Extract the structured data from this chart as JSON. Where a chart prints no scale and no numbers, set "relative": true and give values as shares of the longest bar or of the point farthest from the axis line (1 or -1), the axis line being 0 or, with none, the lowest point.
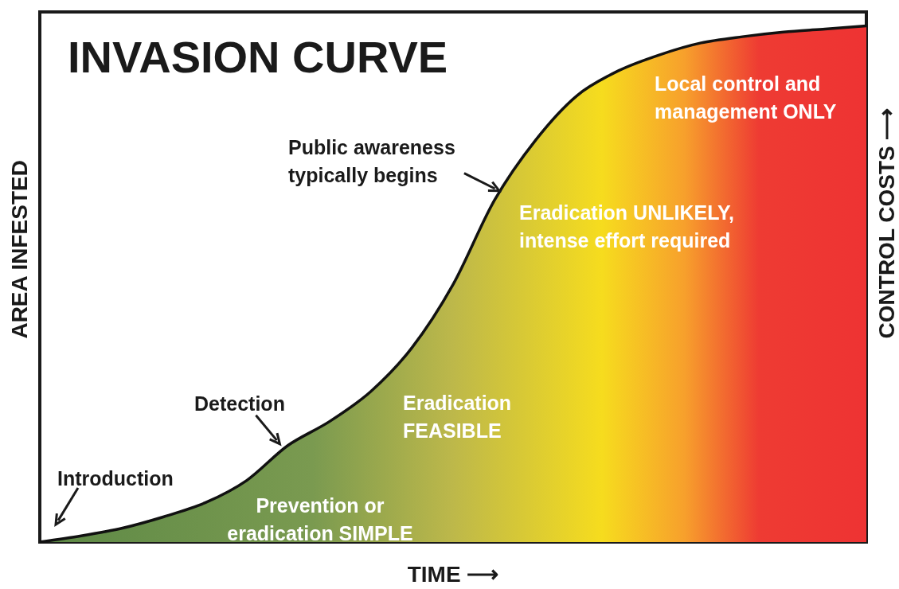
{
  "chart_data": {
    "type": "area",
    "title": "INVASION CURVE",
    "xlabel": "TIME ⟶",
    "ylabel": "AREA INFESTED",
    "y2label": "CONTROL COSTS ⟶",
    "relative": true,
    "grid": false,
    "marker": "none",
    "categories": [
      null,
      null,
      null,
      null,
      null,
      null,
      null,
      null,
      null,
      null,
      null,
      null,
      null,
      null,
      null,
      null,
      null,
      null,
      null,
      null,
      null
    ],
    "series": [
      {
        "color": "#111111",
        "values": [
          0,
          0.012,
          0.027,
          0.049,
          0.076,
          0.119,
          0.187,
          0.233,
          0.291,
          0.376,
          0.499,
          0.662,
          0.779,
          0.865,
          0.913,
          0.944,
          0.967,
          0.979,
          0.988,
          0.994,
          1
        ]
      }
    ],
    "annotations": [
      "Introduction",
      "Detection",
      "Public awareness typically begins",
      "Prevention or eradication SIMPLE",
      "Eradication FEASIBLE",
      "Eradication UNLIKELY, intense effort required",
      "Local control and management ONLY"
    ]
  }
}
